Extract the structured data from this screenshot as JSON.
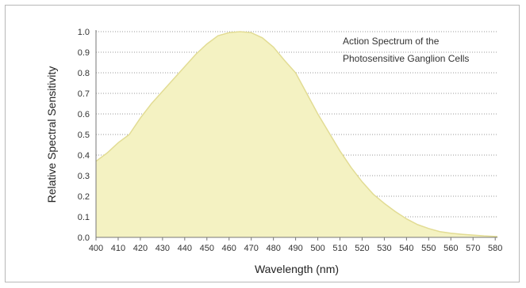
{
  "chart_data": {
    "type": "area",
    "xlabel": "Wavelength (nm)",
    "ylabel": "Relative Spectral Sensitivity",
    "annotation_lines": [
      "Action Spectrum of the",
      "Photosensitive Ganglion Cells"
    ],
    "xlim": [
      400,
      581
    ],
    "ylim": [
      0,
      1.0
    ],
    "x_ticks": [
      400,
      410,
      420,
      430,
      440,
      450,
      460,
      470,
      480,
      490,
      500,
      510,
      520,
      530,
      540,
      550,
      560,
      570,
      580
    ],
    "y_ticks": [
      0.0,
      0.1,
      0.2,
      0.3,
      0.4,
      0.5,
      0.6,
      0.7,
      0.8,
      0.9,
      1.0
    ],
    "grid": "horizontal-dotted",
    "fill_color": "#f4f2c2",
    "line_color": "#e2dc94",
    "series": [
      {
        "x": [
          400,
          405,
          410,
          415,
          420,
          425,
          430,
          435,
          440,
          445,
          450,
          455,
          460,
          465,
          470,
          475,
          480,
          485,
          490,
          495,
          500,
          505,
          510,
          515,
          520,
          525,
          530,
          535,
          540,
          545,
          550,
          555,
          560,
          565,
          570,
          575,
          581
        ],
        "y": [
          0.37,
          0.41,
          0.46,
          0.5,
          0.58,
          0.65,
          0.71,
          0.77,
          0.83,
          0.89,
          0.94,
          0.98,
          0.995,
          1.0,
          0.995,
          0.97,
          0.925,
          0.86,
          0.8,
          0.7,
          0.6,
          0.51,
          0.42,
          0.34,
          0.27,
          0.21,
          0.165,
          0.125,
          0.09,
          0.062,
          0.043,
          0.028,
          0.02,
          0.015,
          0.011,
          0.007,
          0.004
        ]
      }
    ]
  }
}
